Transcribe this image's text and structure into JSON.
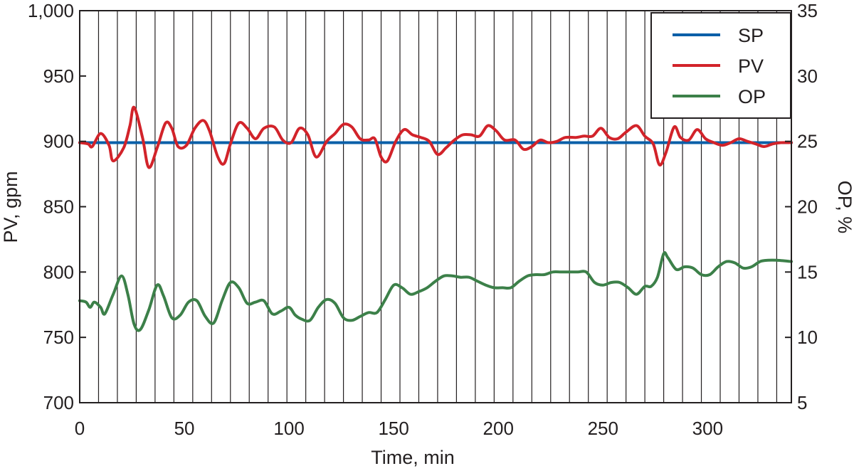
{
  "chart_data": {
    "type": "line",
    "xlabel": "Time, min",
    "ylabel": "PV, gpm",
    "y2label": "OP, %",
    "xlim": [
      0,
      340
    ],
    "ylim": [
      700,
      1000
    ],
    "y2lim": [
      5,
      35
    ],
    "x_ticks": [
      0,
      50,
      100,
      150,
      200,
      250,
      300
    ],
    "x_tick_labels": [
      "0",
      "50",
      "100",
      "150",
      "200",
      "250",
      "300"
    ],
    "y_ticks": [
      700,
      750,
      800,
      850,
      900,
      950,
      1000
    ],
    "y_tick_labels": [
      "700",
      "750",
      "800",
      "850",
      "900",
      "950",
      "1,000"
    ],
    "y2_ticks": [
      5,
      10,
      15,
      20,
      25,
      30,
      35
    ],
    "y2_tick_labels": [
      "5",
      "10",
      "15",
      "20",
      "25",
      "30",
      "35"
    ],
    "x_grid_step": 9,
    "grid": "vertical",
    "legend_position": "top-right",
    "series": [
      {
        "name": "SP",
        "axis": "left",
        "color": "#0a5fa8",
        "x": [
          0,
          340
        ],
        "y": [
          899,
          899
        ]
      },
      {
        "name": "PV",
        "axis": "left",
        "color": "#d2232a",
        "x": [
          0,
          4,
          6,
          10,
          14,
          16,
          21,
          24,
          26,
          30,
          33,
          37,
          41,
          44,
          47,
          51,
          55,
          59,
          62,
          66,
          69,
          72,
          76,
          80,
          84,
          88,
          93,
          97,
          101,
          105,
          109,
          113,
          118,
          122,
          126,
          130,
          134,
          138,
          141,
          144,
          147,
          151,
          155,
          159,
          163,
          167,
          171,
          175,
          179,
          183,
          187,
          191,
          195,
          199,
          203,
          208,
          212,
          216,
          220,
          224,
          228,
          232,
          237,
          241,
          245,
          249,
          253,
          257,
          261,
          266,
          270,
          274,
          277,
          280,
          284,
          287,
          291,
          295,
          299,
          303,
          307,
          311,
          315,
          319,
          323,
          327,
          331,
          335,
          340
        ],
        "y": [
          899,
          898,
          896,
          906,
          897,
          885,
          895,
          912,
          926,
          903,
          880,
          895,
          914,
          910,
          896,
          897,
          910,
          916,
          908,
          888,
          883,
          898,
          914,
          910,
          902,
          910,
          911,
          901,
          899,
          910,
          905,
          888,
          900,
          906,
          913,
          911,
          902,
          901,
          902,
          888,
          885,
          900,
          909,
          905,
          903,
          900,
          890,
          895,
          901,
          905,
          905,
          904,
          912,
          908,
          901,
          901,
          894,
          896,
          901,
          899,
          900,
          903,
          903,
          904,
          904,
          910,
          903,
          902,
          907,
          912,
          904,
          898,
          882,
          891,
          911,
          903,
          901,
          909,
          902,
          899,
          897,
          899,
          902,
          900,
          898,
          896,
          898,
          899,
          899
        ]
      },
      {
        "name": "OP",
        "axis": "right",
        "color": "#3c8049",
        "x": [
          0,
          3,
          5,
          7,
          10,
          12,
          16,
          20,
          23,
          26,
          29,
          33,
          37,
          40,
          44,
          48,
          52,
          56,
          60,
          64,
          68,
          72,
          76,
          80,
          84,
          88,
          92,
          96,
          100,
          103,
          106,
          110,
          114,
          118,
          122,
          126,
          130,
          134,
          138,
          142,
          146,
          150,
          154,
          158,
          162,
          166,
          170,
          174,
          178,
          182,
          186,
          190,
          194,
          198,
          202,
          206,
          210,
          214,
          218,
          222,
          226,
          230,
          234,
          238,
          242,
          246,
          250,
          254,
          258,
          262,
          266,
          270,
          273,
          276,
          279,
          281,
          285,
          289,
          293,
          297,
          301,
          305,
          309,
          313,
          317,
          321,
          325,
          329,
          333,
          340
        ],
        "y": [
          12.8,
          12.7,
          12.3,
          12.7,
          12.3,
          11.8,
          13.3,
          14.7,
          13.3,
          11.0,
          10.6,
          12.1,
          14.0,
          13.2,
          11.5,
          11.7,
          12.7,
          12.8,
          11.6,
          11.1,
          12.8,
          14.2,
          13.8,
          12.6,
          12.7,
          12.8,
          11.8,
          12.0,
          12.3,
          11.7,
          11.4,
          11.3,
          12.3,
          12.9,
          12.6,
          11.5,
          11.3,
          11.6,
          11.9,
          11.9,
          12.9,
          14.0,
          13.8,
          13.3,
          13.5,
          13.8,
          14.3,
          14.7,
          14.7,
          14.6,
          14.6,
          14.3,
          14.0,
          13.8,
          13.8,
          13.8,
          14.3,
          14.7,
          14.8,
          14.8,
          15.0,
          15.0,
          15.0,
          15.0,
          15.0,
          14.2,
          14.0,
          14.2,
          14.2,
          13.8,
          13.3,
          13.9,
          13.9,
          14.6,
          16.4,
          16.1,
          15.2,
          15.4,
          15.3,
          14.8,
          14.8,
          15.4,
          15.8,
          15.7,
          15.3,
          15.4,
          15.8,
          15.9,
          15.9,
          15.8
        ]
      }
    ]
  }
}
